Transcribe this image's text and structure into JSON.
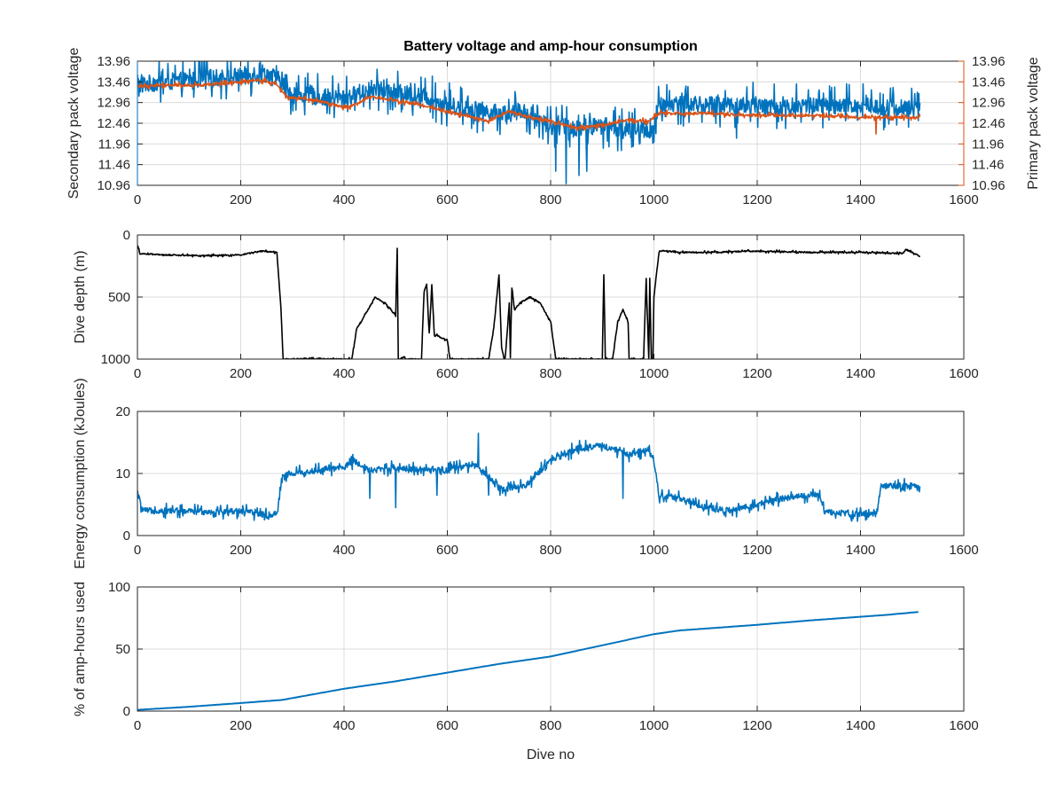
{
  "figure": {
    "title": "Battery voltage and amp-hour consumption"
  },
  "colors": {
    "secondary": "#0072bd",
    "primary": "#d95319",
    "depth": "#000000",
    "energy": "#0072bd",
    "amp": "#0072bd"
  },
  "chart_data": [
    {
      "id": "voltage",
      "type": "line",
      "title": "Battery voltage and amp-hour consumption",
      "xlabel": "",
      "ylabel": "Secondary pack voltage",
      "y2label": "Primary pack voltage",
      "xlim": [
        0,
        1600
      ],
      "ylim": [
        10.96,
        13.96
      ],
      "x_ticks": [
        0,
        200,
        400,
        600,
        800,
        1000,
        1200,
        1400,
        1600
      ],
      "y_ticks": [
        10.96,
        11.46,
        11.96,
        12.46,
        12.96,
        13.46,
        13.96
      ],
      "y_tick_labels": [
        "10.96",
        "11.46",
        "11.96",
        "12.46",
        "12.96",
        "13.46",
        "13.96"
      ],
      "y2_ticks": [
        10.96,
        11.46,
        11.96,
        12.46,
        12.96,
        13.46,
        13.96
      ],
      "y2_tick_labels": [
        "10.96",
        "11.46",
        "11.96",
        "12.46",
        "12.96",
        "13.46",
        "13.96"
      ],
      "grid": true,
      "series": [
        {
          "axis": "left",
          "color": "#0072bd",
          "x": [
            0,
            50,
            100,
            150,
            200,
            240,
            270,
            300,
            350,
            400,
            450,
            500,
            560,
            600,
            650,
            700,
            750,
            800,
            850,
            900,
            950,
            1000,
            1010,
            1050,
            1100,
            1150,
            1200,
            1250,
            1300,
            1350,
            1400,
            1450,
            1515
          ],
          "y": [
            13.4,
            13.45,
            13.5,
            13.55,
            13.6,
            13.7,
            13.55,
            13.15,
            13.1,
            13.05,
            13.3,
            13.2,
            13.1,
            12.9,
            12.8,
            12.7,
            12.75,
            12.4,
            12.35,
            12.4,
            12.3,
            12.3,
            12.9,
            12.95,
            12.9,
            12.9,
            12.9,
            12.85,
            12.9,
            12.85,
            12.9,
            12.85,
            12.8
          ],
          "noise": 0.35,
          "spikes": [
            [
              810,
              11.3
            ],
            [
              830,
              11.0
            ],
            [
              855,
              11.2
            ],
            [
              870,
              11.3
            ],
            [
              960,
              11.9
            ],
            [
              1160,
              12.1
            ],
            [
              1000,
              12.0
            ]
          ]
        },
        {
          "axis": "right",
          "color": "#d95319",
          "x": [
            0,
            50,
            100,
            150,
            200,
            240,
            270,
            290,
            350,
            400,
            420,
            450,
            500,
            550,
            600,
            650,
            680,
            720,
            760,
            800,
            850,
            900,
            950,
            990,
            1010,
            1100,
            1200,
            1300,
            1400,
            1515
          ],
          "y": [
            13.35,
            13.38,
            13.38,
            13.4,
            13.45,
            13.5,
            13.4,
            13.1,
            13.0,
            12.85,
            12.9,
            13.1,
            13.0,
            12.9,
            12.75,
            12.6,
            12.5,
            12.75,
            12.6,
            12.5,
            12.35,
            12.4,
            12.55,
            12.5,
            12.7,
            12.7,
            12.65,
            12.65,
            12.6,
            12.6
          ],
          "noise": 0.05,
          "spikes": [
            [
              1430,
              12.2
            ]
          ]
        }
      ]
    },
    {
      "id": "depth",
      "type": "line",
      "xlabel": "",
      "ylabel": "Dive depth (m)",
      "xlim": [
        0,
        1600
      ],
      "ylim": [
        0,
        1000
      ],
      "y_reversed": true,
      "x_ticks": [
        0,
        200,
        400,
        600,
        800,
        1000,
        1200,
        1400,
        1600
      ],
      "y_ticks": [
        0,
        500,
        1000
      ],
      "y_tick_labels": [
        "0",
        "500",
        "1000"
      ],
      "grid": true,
      "series": [
        {
          "color": "#000000",
          "x": [
            0,
            5,
            50,
            100,
            150,
            200,
            240,
            270,
            278,
            282,
            350,
            400,
            415,
            425,
            440,
            460,
            480,
            500,
            503,
            505,
            510,
            515,
            520,
            550,
            555,
            560,
            565,
            570,
            575,
            580,
            585,
            600,
            605,
            610,
            620,
            680,
            690,
            700,
            705,
            710,
            712,
            720,
            722,
            725,
            730,
            740,
            760,
            780,
            800,
            810,
            812,
            900,
            903,
            906,
            909,
            920,
            930,
            940,
            950,
            952,
            960,
            980,
            985,
            990,
            992,
            995,
            998,
            1000,
            1010,
            1020,
            1030,
            1050,
            1100,
            1200,
            1300,
            1400,
            1480,
            1490,
            1515
          ],
          "y": [
            80,
            150,
            160,
            165,
            165,
            160,
            130,
            140,
            600,
            1000,
            1000,
            1000,
            1000,
            750,
            650,
            500,
            550,
            650,
            110,
            1000,
            1000,
            980,
            1000,
            1000,
            450,
            400,
            800,
            400,
            820,
            800,
            820,
            850,
            1000,
            1000,
            1000,
            1000,
            750,
            320,
            900,
            1000,
            1000,
            550,
            1000,
            420,
            600,
            550,
            500,
            550,
            700,
            1000,
            1000,
            1000,
            320,
            1000,
            1000,
            1000,
            700,
            600,
            700,
            1000,
            1000,
            1000,
            350,
            1000,
            350,
            1000,
            1000,
            500,
            130,
            130,
            130,
            140,
            140,
            130,
            140,
            140,
            150,
            120,
            170
          ],
          "noise": 8
        }
      ]
    },
    {
      "id": "energy",
      "type": "line",
      "xlabel": "",
      "ylabel": "Energy consumption (kJoules)",
      "xlim": [
        0,
        1600
      ],
      "ylim": [
        0,
        20
      ],
      "x_ticks": [
        0,
        200,
        400,
        600,
        800,
        1000,
        1200,
        1400,
        1600
      ],
      "y_ticks": [
        0,
        10,
        20
      ],
      "y_tick_labels": [
        "0",
        "10",
        "20"
      ],
      "grid": true,
      "series": [
        {
          "color": "#0072bd",
          "x": [
            0,
            10,
            50,
            100,
            150,
            200,
            250,
            270,
            280,
            300,
            350,
            400,
            420,
            450,
            500,
            550,
            600,
            650,
            680,
            700,
            750,
            800,
            850,
            900,
            950,
            990,
            1000,
            1010,
            1050,
            1100,
            1150,
            1200,
            1250,
            1300,
            1320,
            1330,
            1400,
            1430,
            1440,
            1500,
            1515
          ],
          "y": [
            7,
            4,
            4,
            3.9,
            3.8,
            4,
            3.3,
            3.5,
            9.5,
            10,
            10.5,
            11,
            12,
            10.5,
            11,
            10.5,
            10.5,
            11.5,
            9.5,
            7.5,
            8,
            12,
            14,
            14.5,
            13,
            14,
            12,
            6.5,
            6,
            4.5,
            4,
            5,
            6,
            6.5,
            6.5,
            3.8,
            3.5,
            3.5,
            8,
            8,
            7.5
          ],
          "noise": 0.8,
          "spikes": [
            [
              660,
              16.5
            ],
            [
              500,
              4.5
            ],
            [
              450,
              6
            ],
            [
              580,
              6.5
            ],
            [
              680,
              6.5
            ],
            [
              940,
              6
            ],
            [
              1160,
              3
            ]
          ]
        }
      ]
    },
    {
      "id": "amphours",
      "type": "line",
      "xlabel": "Dive no",
      "ylabel": "% of amp-hours used",
      "xlim": [
        0,
        1600
      ],
      "ylim": [
        0,
        100
      ],
      "x_ticks": [
        0,
        200,
        400,
        600,
        800,
        1000,
        1200,
        1400,
        1600
      ],
      "y_ticks": [
        0,
        50,
        100
      ],
      "y_tick_labels": [
        "0",
        "50",
        "100"
      ],
      "grid": true,
      "series": [
        {
          "color": "#0072bd",
          "x": [
            0,
            100,
            200,
            280,
            400,
            500,
            600,
            700,
            800,
            900,
            1000,
            1050,
            1100,
            1200,
            1300,
            1400,
            1450,
            1515
          ],
          "y": [
            1,
            3.5,
            6.5,
            9,
            18,
            24,
            31,
            38,
            44,
            53,
            62,
            65,
            66.5,
            69.5,
            73,
            76,
            77.5,
            80
          ],
          "noise": 0
        }
      ]
    }
  ]
}
